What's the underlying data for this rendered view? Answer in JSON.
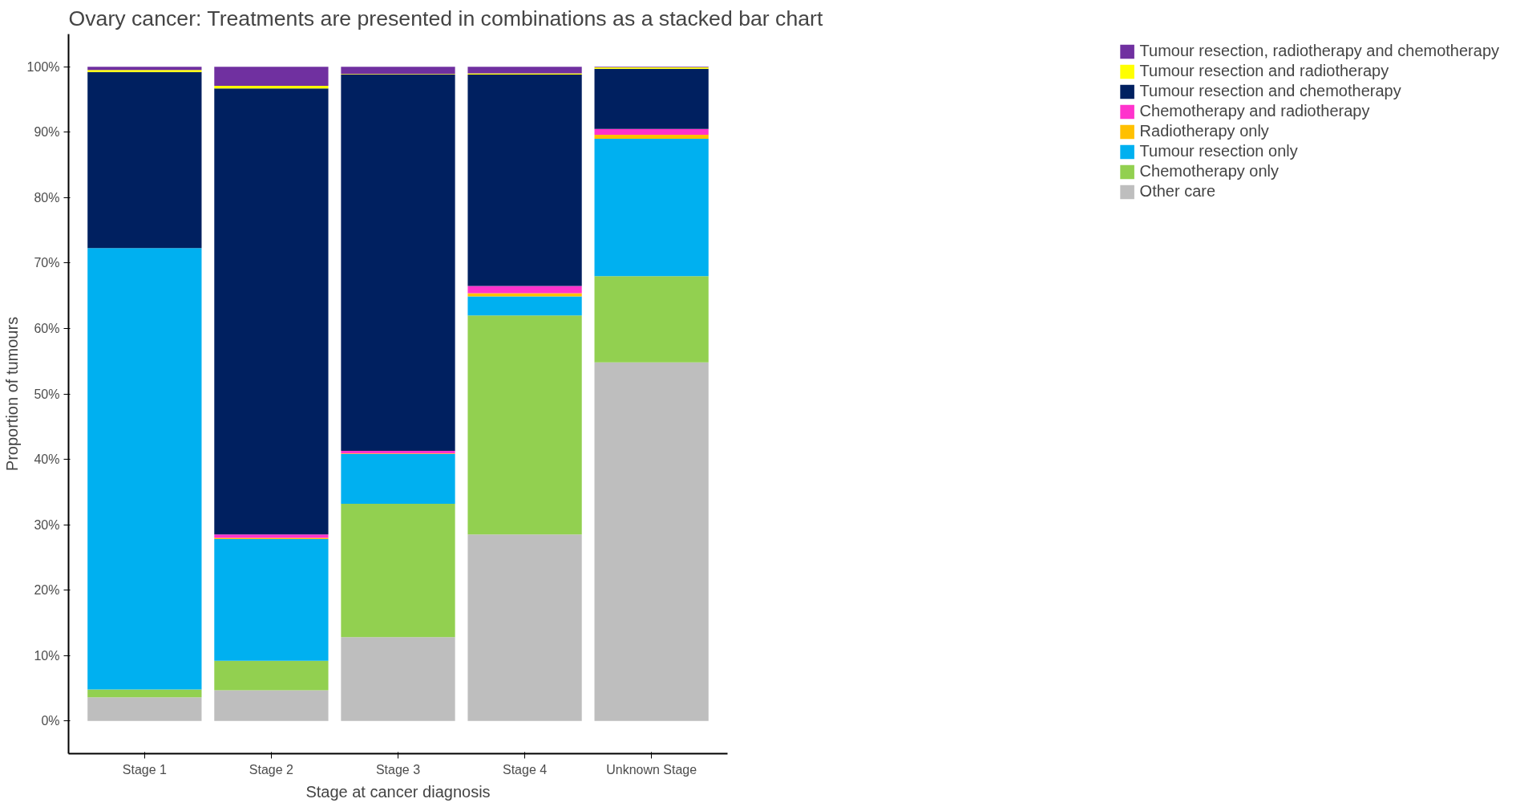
{
  "chart_data": {
    "type": "bar",
    "stacked": true,
    "title": "Ovary cancer: Treatments are presented in combinations as a stacked bar chart",
    "xlabel": "Stage at cancer diagnosis",
    "ylabel": "Proportion of tumours",
    "categories": [
      "Stage 1",
      "Stage 2",
      "Stage 3",
      "Stage 4",
      "Unknown Stage"
    ],
    "series": [
      {
        "name": "Other care",
        "color": "#bebebe",
        "values": [
          3.6,
          4.7,
          12.8,
          28.5,
          54.8
        ]
      },
      {
        "name": "Chemotherapy only",
        "color": "#92d050",
        "values": [
          1.2,
          4.5,
          20.4,
          33.5,
          13.2
        ]
      },
      {
        "name": "Tumour resection only",
        "color": "#00b0f0",
        "values": [
          67.5,
          18.6,
          7.6,
          2.9,
          21.0
        ]
      },
      {
        "name": "Radiotherapy only",
        "color": "#ffc000",
        "values": [
          0,
          0.2,
          0.1,
          0.5,
          0.6
        ]
      },
      {
        "name": "Chemotherapy and radiotherapy",
        "color": "#ff33cc",
        "values": [
          0,
          0.5,
          0.4,
          1.1,
          0.9
        ]
      },
      {
        "name": "Tumour resection and chemotherapy",
        "color": "#002060",
        "values": [
          26.9,
          68.2,
          57.5,
          32.3,
          9.2
        ]
      },
      {
        "name": "Tumour resection and radiotherapy",
        "color": "#ffff00",
        "values": [
          0.3,
          0.4,
          0.1,
          0.2,
          0.2
        ]
      },
      {
        "name": "Tumour resection, radiotherapy and chemotherapy",
        "color": "#7030a0",
        "values": [
          0.5,
          2.9,
          1.1,
          1.0,
          0.1
        ]
      }
    ],
    "ylim": [
      -5,
      105
    ],
    "yticks": [
      {
        "value": 0,
        "label": "0%"
      },
      {
        "value": 10,
        "label": "10%"
      },
      {
        "value": 20,
        "label": "20%"
      },
      {
        "value": 30,
        "label": "30%"
      },
      {
        "value": 40,
        "label": "40%"
      },
      {
        "value": 50,
        "label": "50%"
      },
      {
        "value": 60,
        "label": "60%"
      },
      {
        "value": 70,
        "label": "70%"
      },
      {
        "value": 80,
        "label": "80%"
      },
      {
        "value": 90,
        "label": "90%"
      },
      {
        "value": 100,
        "label": "100%"
      }
    ],
    "grid": false,
    "legend": "right"
  }
}
